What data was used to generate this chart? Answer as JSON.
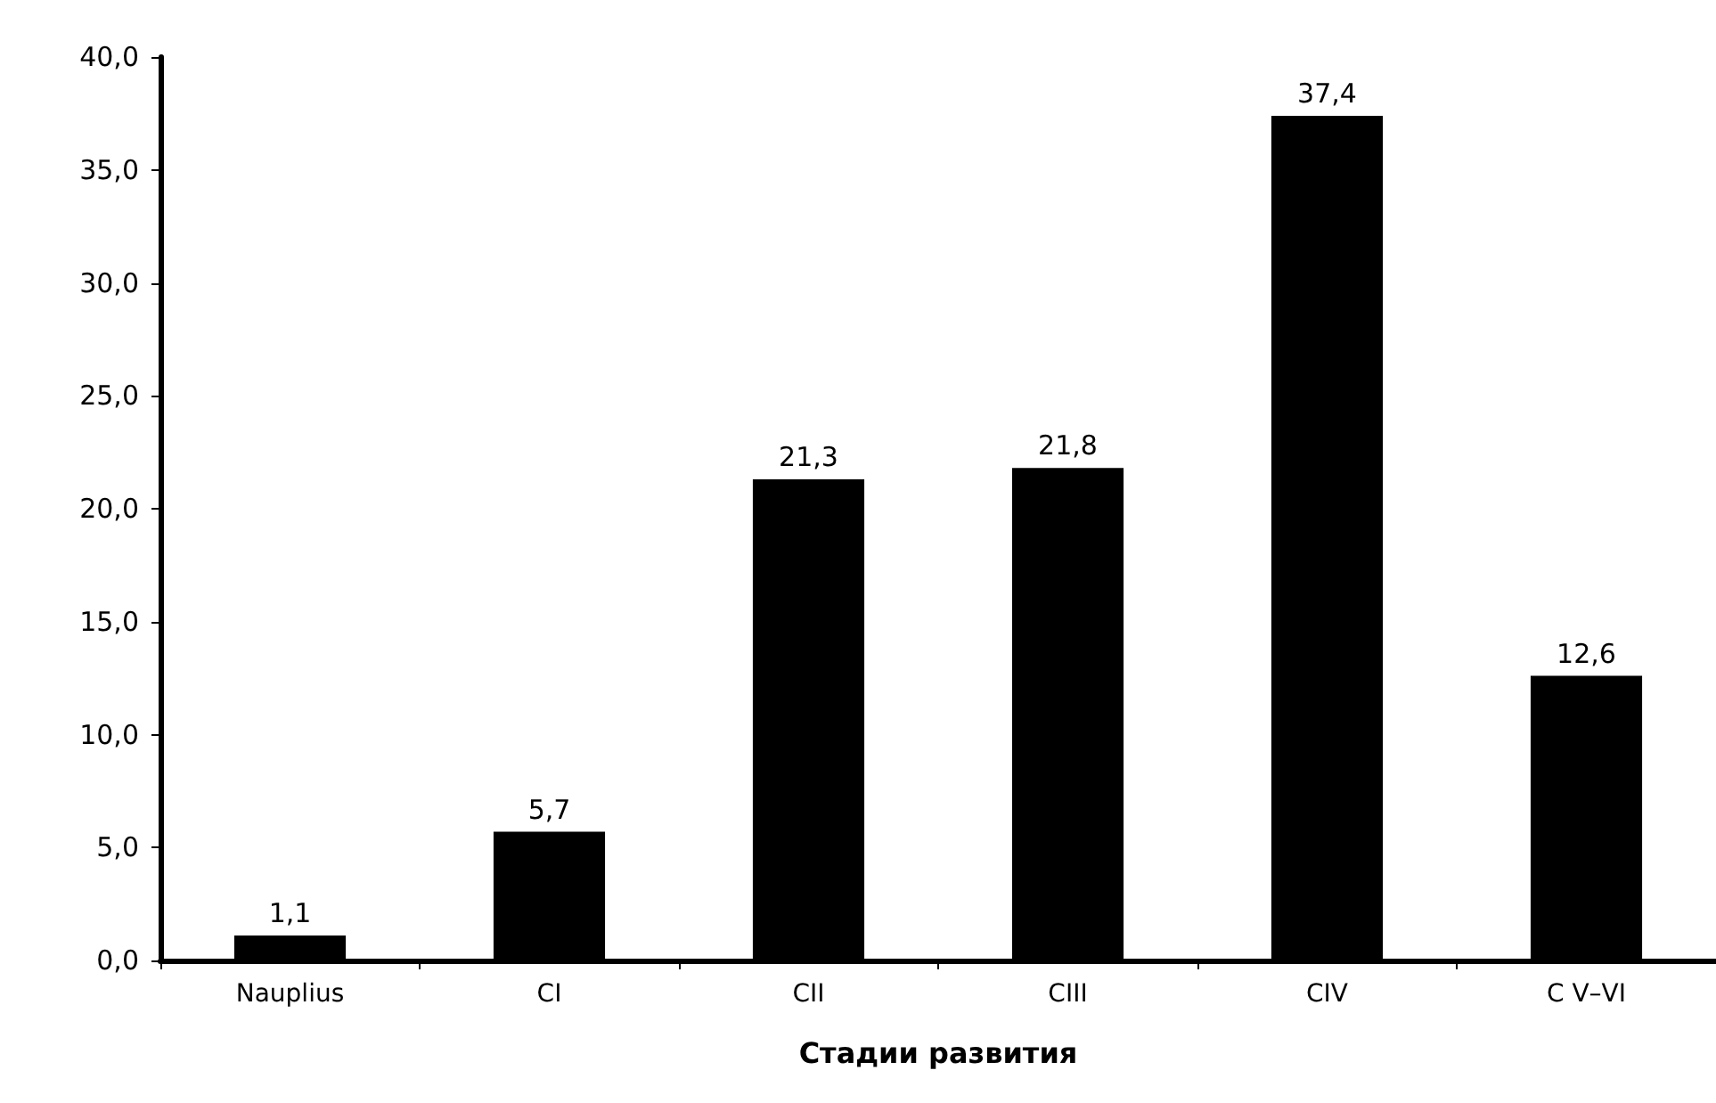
{
  "chart_data": {
    "type": "bar",
    "xlabel": "Стадии развития",
    "categories": [
      "Nauplius",
      "CI",
      "CII",
      "CIII",
      "CIV",
      "C V–VI"
    ],
    "values": [
      1.1,
      5.7,
      21.3,
      21.8,
      37.4,
      12.6
    ],
    "value_labels": [
      "1,1",
      "5,7",
      "21,3",
      "21,8",
      "37,4",
      "12,6"
    ],
    "color": "#000000",
    "ylim": [
      0,
      40
    ],
    "yticks": [
      {
        "value": 0,
        "label": "0,0"
      },
      {
        "value": 5,
        "label": "5,0"
      },
      {
        "value": 10,
        "label": "10,0"
      },
      {
        "value": 15,
        "label": "15,0"
      },
      {
        "value": 20,
        "label": "20,0"
      },
      {
        "value": 25,
        "label": "25,0"
      },
      {
        "value": 30,
        "label": "30,0"
      },
      {
        "value": 35,
        "label": "35,0"
      },
      {
        "value": 40,
        "label": "40,0"
      }
    ],
    "grid": false
  }
}
